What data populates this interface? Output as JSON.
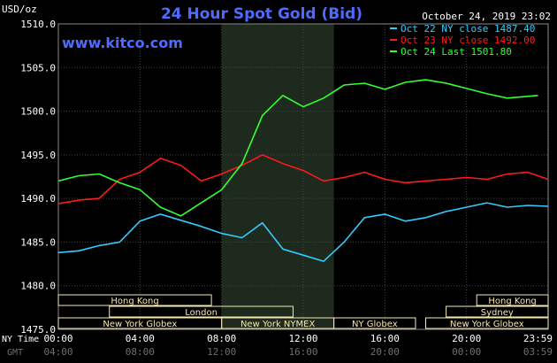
{
  "chart_data": {
    "type": "line",
    "title": "24 Hour Spot Gold (Bid)",
    "watermark": "www.kitco.com",
    "date_label": "October 24, 2019 23:02",
    "ylabel": "USD/oz",
    "ylim": [
      1475,
      1510
    ],
    "yticks": [
      "1510.0",
      "1505.0",
      "1500.0",
      "1495.0",
      "1490.0",
      "1485.0",
      "1480.0",
      "1475.0"
    ],
    "x_hours": [
      0,
      4,
      8,
      12,
      16,
      20,
      23.983
    ],
    "xticks_ny": [
      "00:00",
      "04:00",
      "08:00",
      "12:00",
      "16:00",
      "20:00",
      "23:59"
    ],
    "xticks_gmt": [
      "04:00",
      "08:00",
      "12:00",
      "16:00",
      "20:00",
      "00:00",
      "03:59"
    ],
    "row_label_ny": "NY Time",
    "row_label_gmt": "GMT",
    "highlight_hours": [
      8,
      13.5
    ],
    "grid": true,
    "legend_position": "top-right",
    "colors": {
      "background": "#000000",
      "grid": "#444444",
      "highlight": "#1e2a1e",
      "session_box": "#f5e8b0"
    },
    "series": [
      {
        "name": "Oct 22 NY close 1487.40",
        "color": "#33ccff",
        "x": [
          0,
          1,
          2,
          3,
          4,
          5,
          6,
          7,
          8,
          9,
          10,
          11,
          12,
          13,
          14,
          15,
          16,
          17,
          18,
          19,
          20,
          21,
          22,
          23,
          24
        ],
        "y": [
          1483.8,
          1484.0,
          1484.6,
          1485.0,
          1487.4,
          1488.2,
          1487.5,
          1486.8,
          1486.0,
          1485.5,
          1487.2,
          1484.2,
          1483.5,
          1482.8,
          1485.0,
          1487.8,
          1488.2,
          1487.4,
          1487.8,
          1488.5,
          1489.0,
          1489.5,
          1489.0,
          1489.2,
          1489.1
        ]
      },
      {
        "name": "Oct 23 NY close 1492.00",
        "color": "#ff1a1a",
        "x": [
          0,
          1,
          2,
          3,
          4,
          5,
          6,
          7,
          8,
          9,
          10,
          11,
          12,
          13,
          14,
          15,
          16,
          17,
          18,
          19,
          20,
          21,
          22,
          23,
          24
        ],
        "y": [
          1489.4,
          1489.8,
          1490.0,
          1492.2,
          1493.0,
          1494.6,
          1493.8,
          1492.0,
          1492.8,
          1493.8,
          1495.0,
          1494.0,
          1493.2,
          1492.0,
          1492.4,
          1493.0,
          1492.2,
          1491.8,
          1492.0,
          1492.2,
          1492.4,
          1492.2,
          1492.8,
          1493.0,
          1492.2
        ]
      },
      {
        "name": "Oct 24 Last 1501.80",
        "color": "#33ff33",
        "x": [
          0,
          1,
          2,
          3,
          4,
          5,
          6,
          7,
          8,
          9,
          10,
          11,
          12,
          13,
          14,
          15,
          16,
          17,
          18,
          19,
          20,
          21,
          22,
          23,
          23.5
        ],
        "y": [
          1492.0,
          1492.6,
          1492.8,
          1491.8,
          1491.0,
          1489.0,
          1488.0,
          1489.5,
          1491.0,
          1494.0,
          1499.5,
          1501.8,
          1500.5,
          1501.5,
          1503.0,
          1503.2,
          1502.5,
          1503.3,
          1503.6,
          1503.2,
          1502.6,
          1502.0,
          1501.5,
          1501.7,
          1501.8
        ]
      }
    ],
    "sessions": [
      {
        "name": "Hong Kong",
        "start": 0,
        "end": 7.5,
        "row": 0
      },
      {
        "name": "Hong Kong",
        "start": 20.5,
        "end": 24,
        "row": 0
      },
      {
        "name": "London",
        "start": 2.5,
        "end": 11.5,
        "row": 1
      },
      {
        "name": "Sydney",
        "start": 19,
        "end": 24,
        "row": 1
      },
      {
        "name": "New York Globex",
        "start": 0,
        "end": 8,
        "row": 2
      },
      {
        "name": "New York NYMEX",
        "start": 8,
        "end": 13.5,
        "row": 2
      },
      {
        "name": "NY Globex",
        "start": 13.5,
        "end": 17.5,
        "row": 2
      },
      {
        "name": "New York Globex",
        "start": 18,
        "end": 24,
        "row": 2
      }
    ]
  }
}
